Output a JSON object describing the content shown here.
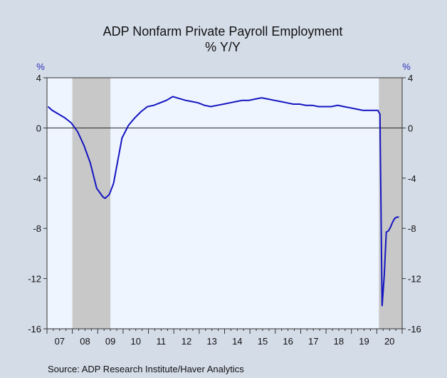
{
  "colors": {
    "background": "#d4dce8",
    "plot_background": "#eef5ff",
    "recession_shade": "#c8c8c8",
    "series_line": "#1515c0",
    "axis_text_blue": "#2a2ab8"
  },
  "source": "Source:  ADP Research Institute/Haver Analytics",
  "chart_data": {
    "type": "line",
    "title": "ADP Nonfarm Private Payroll Employment",
    "subtitle": "% Y/Y",
    "ylabel_left": "%",
    "ylabel_right": "%",
    "ylim": [
      -16,
      4
    ],
    "y_ticks": [
      4,
      0,
      -4,
      -8,
      -12,
      -16
    ],
    "y_tick_labels": [
      "4",
      "0",
      "-4",
      "-8",
      "-12",
      "-16"
    ],
    "x_tick_labels": [
      "07",
      "08",
      "09",
      "10",
      "11",
      "12",
      "13",
      "14",
      "15",
      "16",
      "17",
      "18",
      "19",
      "20"
    ],
    "xlim": [
      "2007-01",
      "2020-12"
    ],
    "grid": false,
    "zero_line": true,
    "recessions": [
      {
        "start": "2008-01",
        "end": "2009-06"
      },
      {
        "start": "2020-02",
        "end": "2020-12"
      }
    ],
    "series": [
      {
        "x": [
          "2007-01",
          "2007-03",
          "2007-06",
          "2007-09",
          "2007-12",
          "2008-03",
          "2008-06",
          "2008-09",
          "2008-12",
          "2009-03",
          "2009-04",
          "2009-06",
          "2009-08",
          "2009-10",
          "2009-12",
          "2010-03",
          "2010-06",
          "2010-09",
          "2010-12",
          "2011-03",
          "2011-06",
          "2011-09",
          "2011-12",
          "2012-02",
          "2012-04",
          "2012-06",
          "2012-09",
          "2012-12",
          "2013-03",
          "2013-06",
          "2013-09",
          "2013-12",
          "2014-03",
          "2014-06",
          "2014-09",
          "2014-12",
          "2015-03",
          "2015-06",
          "2015-09",
          "2015-12",
          "2016-03",
          "2016-06",
          "2016-09",
          "2016-12",
          "2017-03",
          "2017-06",
          "2017-09",
          "2017-12",
          "2018-03",
          "2018-06",
          "2018-09",
          "2018-12",
          "2019-03",
          "2019-06",
          "2019-09",
          "2019-12",
          "2020-01",
          "2020-02",
          "2020-03",
          "2020-04",
          "2020-05",
          "2020-06",
          "2020-07",
          "2020-08",
          "2020-09",
          "2020-10",
          "2020-11"
        ],
        "values": [
          1.7,
          1.4,
          1.1,
          0.8,
          0.4,
          -0.3,
          -1.4,
          -2.8,
          -4.8,
          -5.5,
          -5.6,
          -5.3,
          -4.4,
          -2.6,
          -0.8,
          0.2,
          0.8,
          1.3,
          1.7,
          1.8,
          2.0,
          2.2,
          2.5,
          2.4,
          2.3,
          2.2,
          2.1,
          2.0,
          1.8,
          1.7,
          1.8,
          1.9,
          2.0,
          2.1,
          2.2,
          2.2,
          2.3,
          2.4,
          2.3,
          2.2,
          2.1,
          2.0,
          1.9,
          1.9,
          1.8,
          1.8,
          1.7,
          1.7,
          1.7,
          1.8,
          1.7,
          1.6,
          1.5,
          1.4,
          1.4,
          1.4,
          1.4,
          1.1,
          -14.2,
          -11.8,
          -8.3,
          -8.2,
          -7.9,
          -7.5,
          -7.2,
          -7.1,
          -7.1
        ]
      }
    ]
  }
}
